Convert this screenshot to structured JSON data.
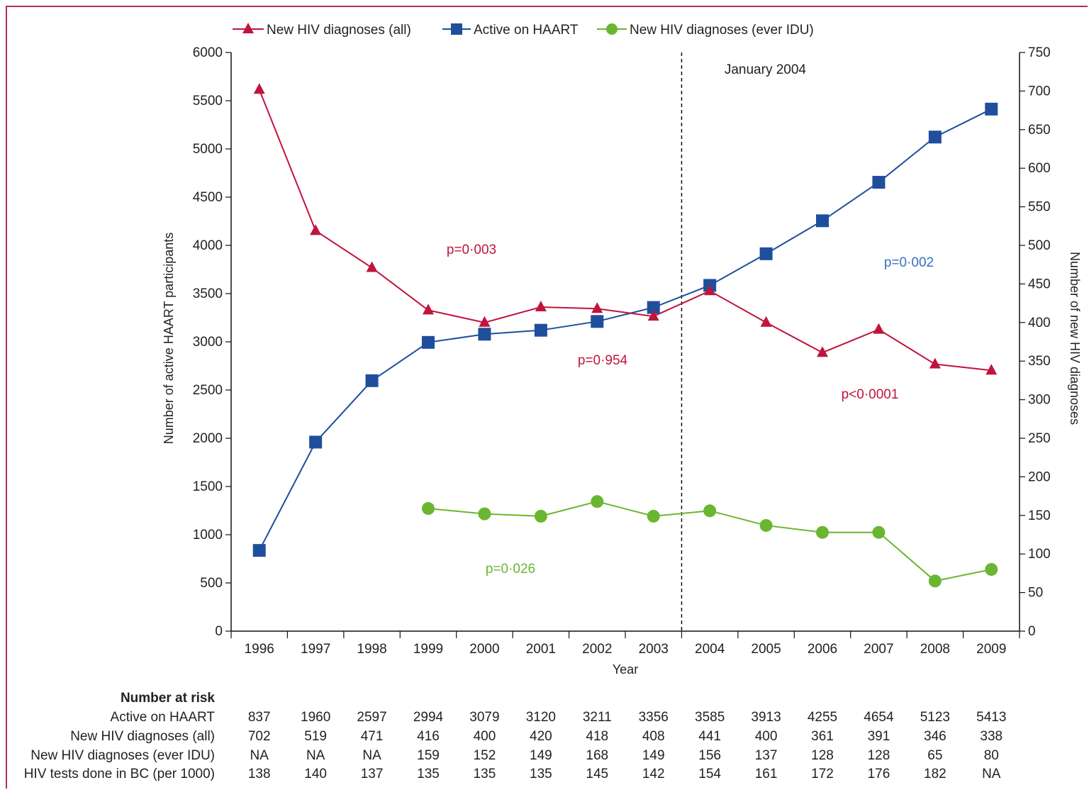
{
  "chart_data": {
    "type": "line",
    "legend_placement": "top",
    "xlabel": "Year",
    "ylabel_left": "Number of active HAART participants",
    "ylabel_right": "Number of new HIV diagnoses",
    "ylim_left": [
      0,
      6000
    ],
    "ylim_right": [
      0,
      750
    ],
    "yticks_left": [
      "0",
      "500",
      "1000",
      "1500",
      "2000",
      "2500",
      "3000",
      "3500",
      "4000",
      "4500",
      "5000",
      "5500",
      "6000"
    ],
    "yticks_right": [
      "0",
      "50",
      "100",
      "150",
      "200",
      "250",
      "300",
      "350",
      "400",
      "450",
      "500",
      "550",
      "600",
      "650",
      "700",
      "750"
    ],
    "x": [
      "1996",
      "1997",
      "1998",
      "1999",
      "2000",
      "2001",
      "2002",
      "2003",
      "2004",
      "2005",
      "2006",
      "2007",
      "2008",
      "2009"
    ],
    "series": [
      {
        "name": "New HIV diagnoses (all)",
        "axis": "right",
        "marker": "triangle",
        "color": "#c0143c",
        "values": [
          702,
          519,
          471,
          416,
          400,
          420,
          418,
          408,
          441,
          400,
          361,
          391,
          346,
          338
        ]
      },
      {
        "name": "Active on HAART",
        "axis": "left",
        "marker": "square",
        "color": "#1f4e9c",
        "values": [
          837,
          1960,
          2597,
          2994,
          3079,
          3120,
          3211,
          3356,
          3585,
          3913,
          4255,
          4654,
          5123,
          5413
        ]
      },
      {
        "name": "New HIV diagnoses (ever IDU)",
        "axis": "right",
        "marker": "circle",
        "color": "#6ab630",
        "values": [
          null,
          null,
          null,
          159,
          152,
          149,
          168,
          149,
          156,
          137,
          128,
          128,
          65,
          80
        ]
      }
    ],
    "vline": {
      "label": "January 2004",
      "between": [
        "2003",
        "2004"
      ]
    },
    "annotations": [
      {
        "text": "p=0·003",
        "color": "#c0143c"
      },
      {
        "text": "p=0·954",
        "color": "#c0143c"
      },
      {
        "text": "p<0·0001",
        "color": "#c0143c"
      },
      {
        "text": "p=0·002",
        "color": "#3a6fbd"
      },
      {
        "text": "p=0·026",
        "color": "#6ab630"
      }
    ],
    "risk_table": {
      "title": "Number at risk",
      "rows": [
        {
          "label": "Active on HAART",
          "values": [
            "837",
            "1960",
            "2597",
            "2994",
            "3079",
            "3120",
            "3211",
            "3356",
            "3585",
            "3913",
            "4255",
            "4654",
            "5123",
            "5413"
          ]
        },
        {
          "label": "New HIV diagnoses (all)",
          "values": [
            "702",
            "519",
            "471",
            "416",
            "400",
            "420",
            "418",
            "408",
            "441",
            "400",
            "361",
            "391",
            "346",
            "338"
          ]
        },
        {
          "label": "New HIV diagnoses (ever IDU)",
          "values": [
            "NA",
            "NA",
            "NA",
            "159",
            "152",
            "149",
            "168",
            "149",
            "156",
            "137",
            "128",
            "128",
            "65",
            "80"
          ]
        },
        {
          "label": "HIV tests done in BC (per 1000)",
          "values": [
            "138",
            "140",
            "137",
            "135",
            "135",
            "135",
            "145",
            "142",
            "154",
            "161",
            "172",
            "176",
            "182",
            "NA"
          ]
        }
      ]
    }
  }
}
